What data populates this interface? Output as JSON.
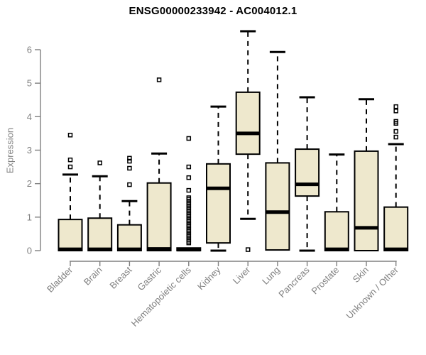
{
  "chart_data": {
    "type": "boxplot",
    "title": "ENSG00000233942 - AC004012.1",
    "ylabel": "Expression",
    "xlabel": "",
    "ylim": [
      0,
      6.6
    ],
    "yticks": [
      0,
      1,
      2,
      3,
      4,
      5,
      6
    ],
    "grid": false,
    "legend": "none",
    "categories": [
      "Bladder",
      "Brain",
      "Breast",
      "Gastric",
      "Hematopoietic cells",
      "Kidney",
      "Liver",
      "Lung",
      "Pancreas",
      "Prostate",
      "Skin",
      "Unknown / Other"
    ],
    "series": [
      {
        "name": "Bladder",
        "low": 0,
        "q1": 0,
        "median": 0.04,
        "q3": 0.93,
        "high": 2.27,
        "outliers": [
          2.5,
          2.71,
          3.45
        ]
      },
      {
        "name": "Brain",
        "low": 0,
        "q1": 0,
        "median": 0.04,
        "q3": 0.97,
        "high": 2.22,
        "outliers": [
          2.62
        ]
      },
      {
        "name": "Breast",
        "low": 0,
        "q1": 0,
        "median": 0.04,
        "q3": 0.77,
        "high": 1.48,
        "outliers": [
          1.97,
          2.46,
          2.67,
          2.76
        ]
      },
      {
        "name": "Gastric",
        "low": 0,
        "q1": 0,
        "median": 0.05,
        "q3": 2.02,
        "high": 2.9,
        "outliers": [
          5.1
        ]
      },
      {
        "name": "Hematopoietic cells",
        "low": 0,
        "q1": 0,
        "median": 0.03,
        "q3": 0.08,
        "high": 0.08,
        "outliers": [
          0.23,
          0.28,
          0.33,
          0.38,
          0.43,
          0.48,
          0.53,
          0.58,
          0.63,
          0.68,
          0.73,
          0.78,
          0.83,
          0.88,
          0.93,
          0.98,
          1.03,
          1.08,
          1.13,
          1.18,
          1.23,
          1.28,
          1.33,
          1.38,
          1.43,
          1.48,
          1.53,
          1.58,
          1.8,
          2.18,
          2.5,
          3.35
        ]
      },
      {
        "name": "Kidney",
        "low": 0,
        "q1": 0.23,
        "median": 1.86,
        "q3": 2.59,
        "high": 4.3,
        "outliers": []
      },
      {
        "name": "Liver",
        "low": 0.95,
        "q1": 2.88,
        "median": 3.5,
        "q3": 4.73,
        "high": 6.55,
        "outliers": [
          0.03
        ]
      },
      {
        "name": "Lung",
        "low": 0.02,
        "q1": 0.02,
        "median": 1.15,
        "q3": 2.62,
        "high": 5.93,
        "outliers": []
      },
      {
        "name": "Pancreas",
        "low": 0,
        "q1": 1.63,
        "median": 1.98,
        "q3": 3.03,
        "high": 4.58,
        "outliers": []
      },
      {
        "name": "Prostate",
        "low": 0,
        "q1": 0,
        "median": 0.04,
        "q3": 1.16,
        "high": 2.87,
        "outliers": []
      },
      {
        "name": "Skin",
        "low": 0,
        "q1": 0,
        "median": 0.68,
        "q3": 2.97,
        "high": 4.52,
        "outliers": []
      },
      {
        "name": "Unknown / Other",
        "low": 0,
        "q1": 0,
        "median": 0.04,
        "q3": 1.3,
        "high": 3.18,
        "outliers": [
          3.39,
          3.56,
          3.8,
          3.86,
          4.17,
          4.3
        ]
      }
    ],
    "colors": {
      "box_fill": "#EEE8CD",
      "box_stroke": "#000000",
      "median": "#000000",
      "whisker": "#000000",
      "outlier_stroke": "#000000",
      "axis": "#808080",
      "tick_text": "#808080",
      "title_text": "#000000",
      "background": "#ffffff"
    }
  }
}
